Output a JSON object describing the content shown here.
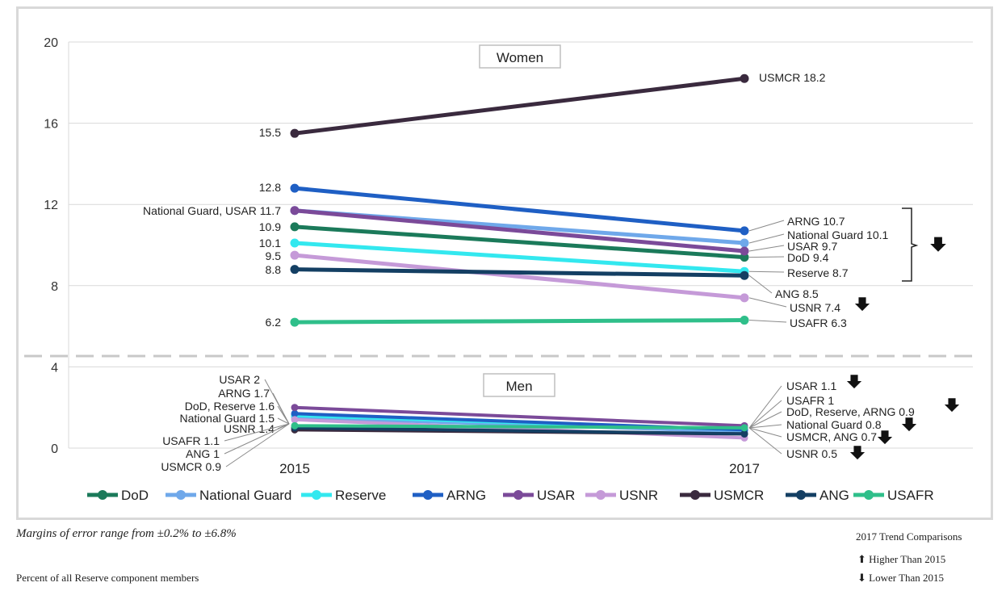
{
  "chart_data": {
    "type": "line",
    "x": [
      "2015",
      "2017"
    ],
    "ylim": [
      0,
      20
    ],
    "yticks": [
      0,
      4,
      8,
      12,
      16,
      20
    ],
    "grid": true,
    "legend_position": "bottom",
    "panels": [
      {
        "label": "Women",
        "y_range": [
          4,
          20
        ]
      },
      {
        "label": "Men",
        "y_range": [
          0,
          4
        ]
      }
    ],
    "series": [
      {
        "name": "DoD",
        "color": "#1b7a5a",
        "women": [
          10.9,
          9.4
        ],
        "men": [
          1.6,
          0.9
        ]
      },
      {
        "name": "National Guard",
        "color": "#6fa8ea",
        "women": [
          11.7,
          10.1
        ],
        "men": [
          1.5,
          0.8
        ]
      },
      {
        "name": "Reserve",
        "color": "#33e8ef",
        "women": [
          10.1,
          8.7
        ],
        "men": [
          1.6,
          0.9
        ]
      },
      {
        "name": "ARNG",
        "color": "#1f5fc4",
        "women": [
          12.8,
          10.7
        ],
        "men": [
          1.7,
          0.9
        ]
      },
      {
        "name": "USAR",
        "color": "#7b4a99",
        "women": [
          11.7,
          9.7
        ],
        "men": [
          2.0,
          1.1
        ]
      },
      {
        "name": "USNR",
        "color": "#c59ad8",
        "women": [
          9.5,
          7.4
        ],
        "men": [
          1.4,
          0.5
        ]
      },
      {
        "name": "USMCR",
        "color": "#3a2a3e",
        "women": [
          15.5,
          18.2
        ],
        "men": [
          0.9,
          0.7
        ]
      },
      {
        "name": "ANG",
        "color": "#143f63",
        "women": [
          8.8,
          8.5
        ],
        "men": [
          1.0,
          0.7
        ]
      },
      {
        "name": "USAFR",
        "color": "#2fbf8a",
        "women": [
          6.2,
          6.3
        ],
        "men": [
          1.1,
          1.0
        ]
      }
    ],
    "labels_women_2015": [
      "15.5",
      "12.8",
      "National Guard, USAR 11.7",
      "10.9",
      "10.1",
      "9.5",
      "8.8",
      "6.2"
    ],
    "labels_women_2017": [
      "USMCR 18.2",
      "ARNG 10.7",
      "National Guard 10.1",
      "USAR 9.7",
      "DoD 9.4",
      "Reserve 8.7",
      "ANG 8.5",
      "USNR 7.4",
      "USAFR 6.3"
    ],
    "labels_men_2015": [
      "USAR 2",
      "ARNG 1.7",
      "DoD, Reserve 1.6",
      "National Guard 1.5",
      "USNR 1.4",
      "USAFR 1.1",
      "ANG 1",
      "USMCR 0.9"
    ],
    "labels_men_2017": [
      "USAR 1.1",
      "USAFR 1",
      "DoD, Reserve, ARNG 0.9",
      "National Guard 0.8",
      "USMCR, ANG 0.7",
      "USNR 0.5"
    ]
  },
  "notes": {
    "margin": "Margins of error range from ±0.2% to ±6.8%",
    "percent": "Percent of all Reserve component members",
    "trend_title": "2017 Trend Comparisons",
    "higher": "Higher Than 2015",
    "lower": "Lower Than 2015"
  }
}
